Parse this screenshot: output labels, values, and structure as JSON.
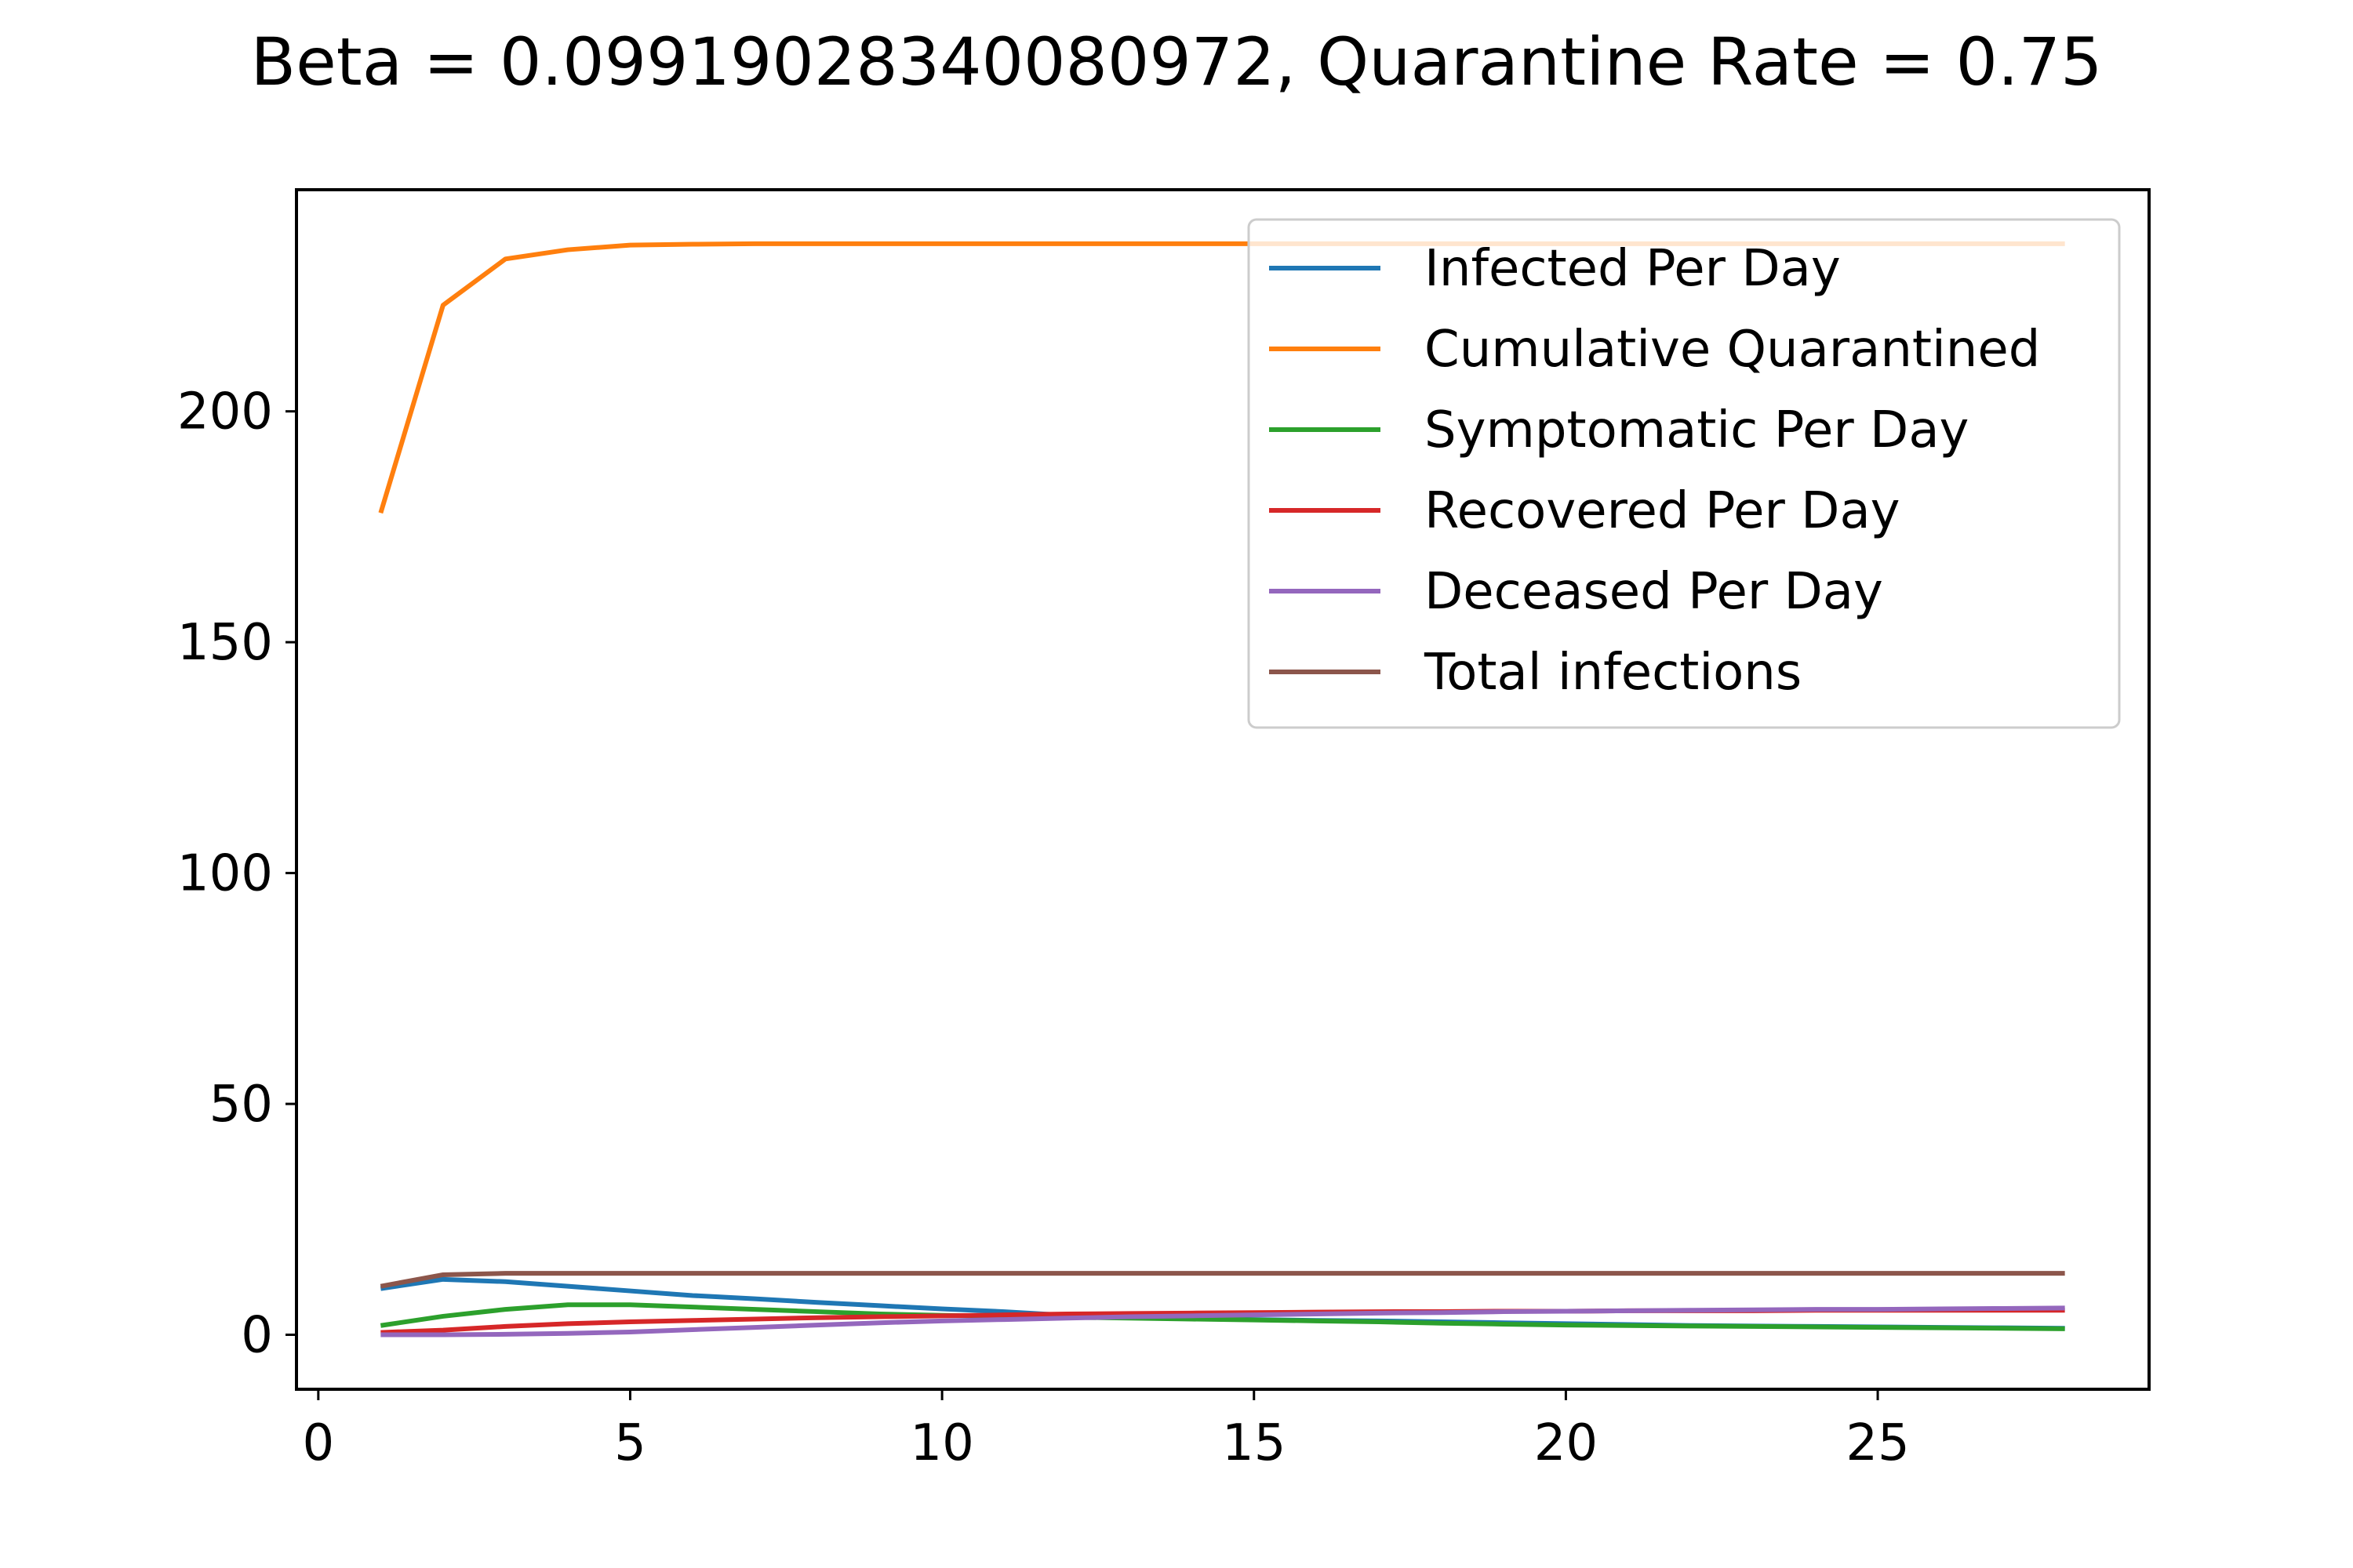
{
  "chart_data": {
    "type": "line",
    "title": "Beta = 0.09919028340080972, Quarantine Rate = 0.75",
    "xlabel": "",
    "ylabel": "",
    "xlim": [
      -0.35,
      29.35
    ],
    "ylim": [
      -11.8,
      248.0
    ],
    "xticks": [
      0,
      5,
      10,
      15,
      20,
      25
    ],
    "yticks": [
      0,
      50,
      100,
      150,
      200
    ],
    "grid": false,
    "legend_position": "top-right",
    "x": [
      1,
      2,
      3,
      4,
      5,
      6,
      7,
      8,
      9,
      10,
      11,
      12,
      13,
      14,
      15,
      16,
      17,
      18,
      19,
      20,
      21,
      22,
      23,
      24,
      25,
      26,
      27,
      28
    ],
    "series": [
      {
        "name": "Infected Per Day",
        "color": "#1f77b4",
        "values": [
          10,
          12,
          11.5,
          10.5,
          9.5,
          8.5,
          7.8,
          7,
          6.3,
          5.6,
          5,
          4.2,
          3.8,
          3.5,
          3.3,
          3.1,
          3,
          2.8,
          2.6,
          2.4,
          2.2,
          2,
          1.9,
          1.8,
          1.7,
          1.6,
          1.5,
          1.4
        ]
      },
      {
        "name": "Cumulative Quarantined",
        "color": "#ff7f0e",
        "values": [
          178,
          223,
          233,
          235,
          236,
          236.2,
          236.3,
          236.3,
          236.3,
          236.3,
          236.3,
          236.3,
          236.3,
          236.3,
          236.3,
          236.3,
          236.3,
          236.3,
          236.3,
          236.3,
          236.3,
          236.3,
          236.3,
          236.3,
          236.3,
          236.3,
          236.3,
          236.3
        ]
      },
      {
        "name": "Symptomatic Per Day",
        "color": "#2ca02c",
        "values": [
          2,
          4,
          5.5,
          6.5,
          6.5,
          6,
          5.5,
          5,
          4.5,
          4.2,
          4,
          3.8,
          3.6,
          3.4,
          3.2,
          3,
          2.8,
          2.5,
          2.3,
          2.1,
          2,
          1.9,
          1.8,
          1.7,
          1.6,
          1.5,
          1.4,
          1.3
        ]
      },
      {
        "name": "Recovered Per Day",
        "color": "#d62728",
        "values": [
          0.5,
          1,
          1.8,
          2.4,
          2.8,
          3.1,
          3.4,
          3.7,
          3.9,
          4.1,
          4.3,
          4.5,
          4.6,
          4.7,
          4.8,
          4.9,
          5,
          5,
          5.1,
          5.1,
          5.2,
          5.2,
          5.2,
          5.3,
          5.3,
          5.3,
          5.3,
          5.3
        ]
      },
      {
        "name": "Deceased Per Day",
        "color": "#9467bd",
        "values": [
          0,
          0,
          0.1,
          0.3,
          0.6,
          1.1,
          1.6,
          2.1,
          2.6,
          3,
          3.3,
          3.6,
          3.9,
          4.1,
          4.3,
          4.5,
          4.7,
          4.8,
          5,
          5.1,
          5.2,
          5.3,
          5.4,
          5.5,
          5.5,
          5.6,
          5.7,
          5.8
        ]
      },
      {
        "name": "Total infections",
        "color": "#8c564b",
        "values": [
          10.5,
          13,
          13.3,
          13.3,
          13.3,
          13.3,
          13.3,
          13.3,
          13.3,
          13.3,
          13.3,
          13.3,
          13.3,
          13.3,
          13.3,
          13.3,
          13.3,
          13.3,
          13.3,
          13.3,
          13.3,
          13.3,
          13.3,
          13.3,
          13.3,
          13.3,
          13.3,
          13.3
        ]
      }
    ]
  }
}
